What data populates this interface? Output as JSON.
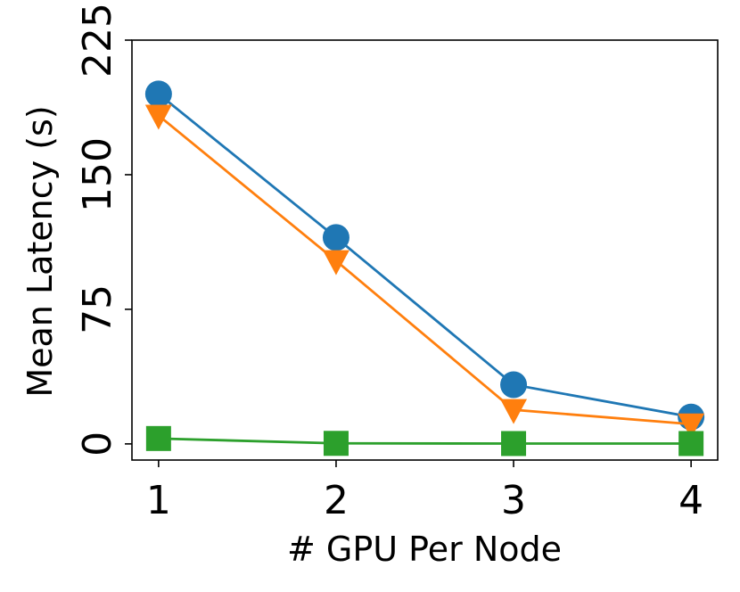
{
  "chart_data": {
    "type": "line",
    "xlabel": "# GPU Per Node",
    "ylabel": "Mean Latency (s)",
    "x": [
      1,
      2,
      3,
      4
    ],
    "xticks": [
      "1",
      "2",
      "3",
      "4"
    ],
    "yticks": [
      "0",
      "75",
      "150",
      "225"
    ],
    "ytick_values": [
      0,
      75,
      150,
      225
    ],
    "xlim": [
      0.85,
      4.15
    ],
    "ylim": [
      -9,
      225
    ],
    "grid": false,
    "series": [
      {
        "values": [
          195,
          115,
          33,
          15
        ],
        "color": "#1f77b4",
        "marker": "circle"
      },
      {
        "values": [
          183,
          102,
          19,
          11
        ],
        "color": "#ff7f0e",
        "marker": "triangle-down"
      },
      {
        "values": [
          3,
          0.3,
          0.2,
          0.2
        ],
        "color": "#2ca02c",
        "marker": "square"
      }
    ]
  }
}
